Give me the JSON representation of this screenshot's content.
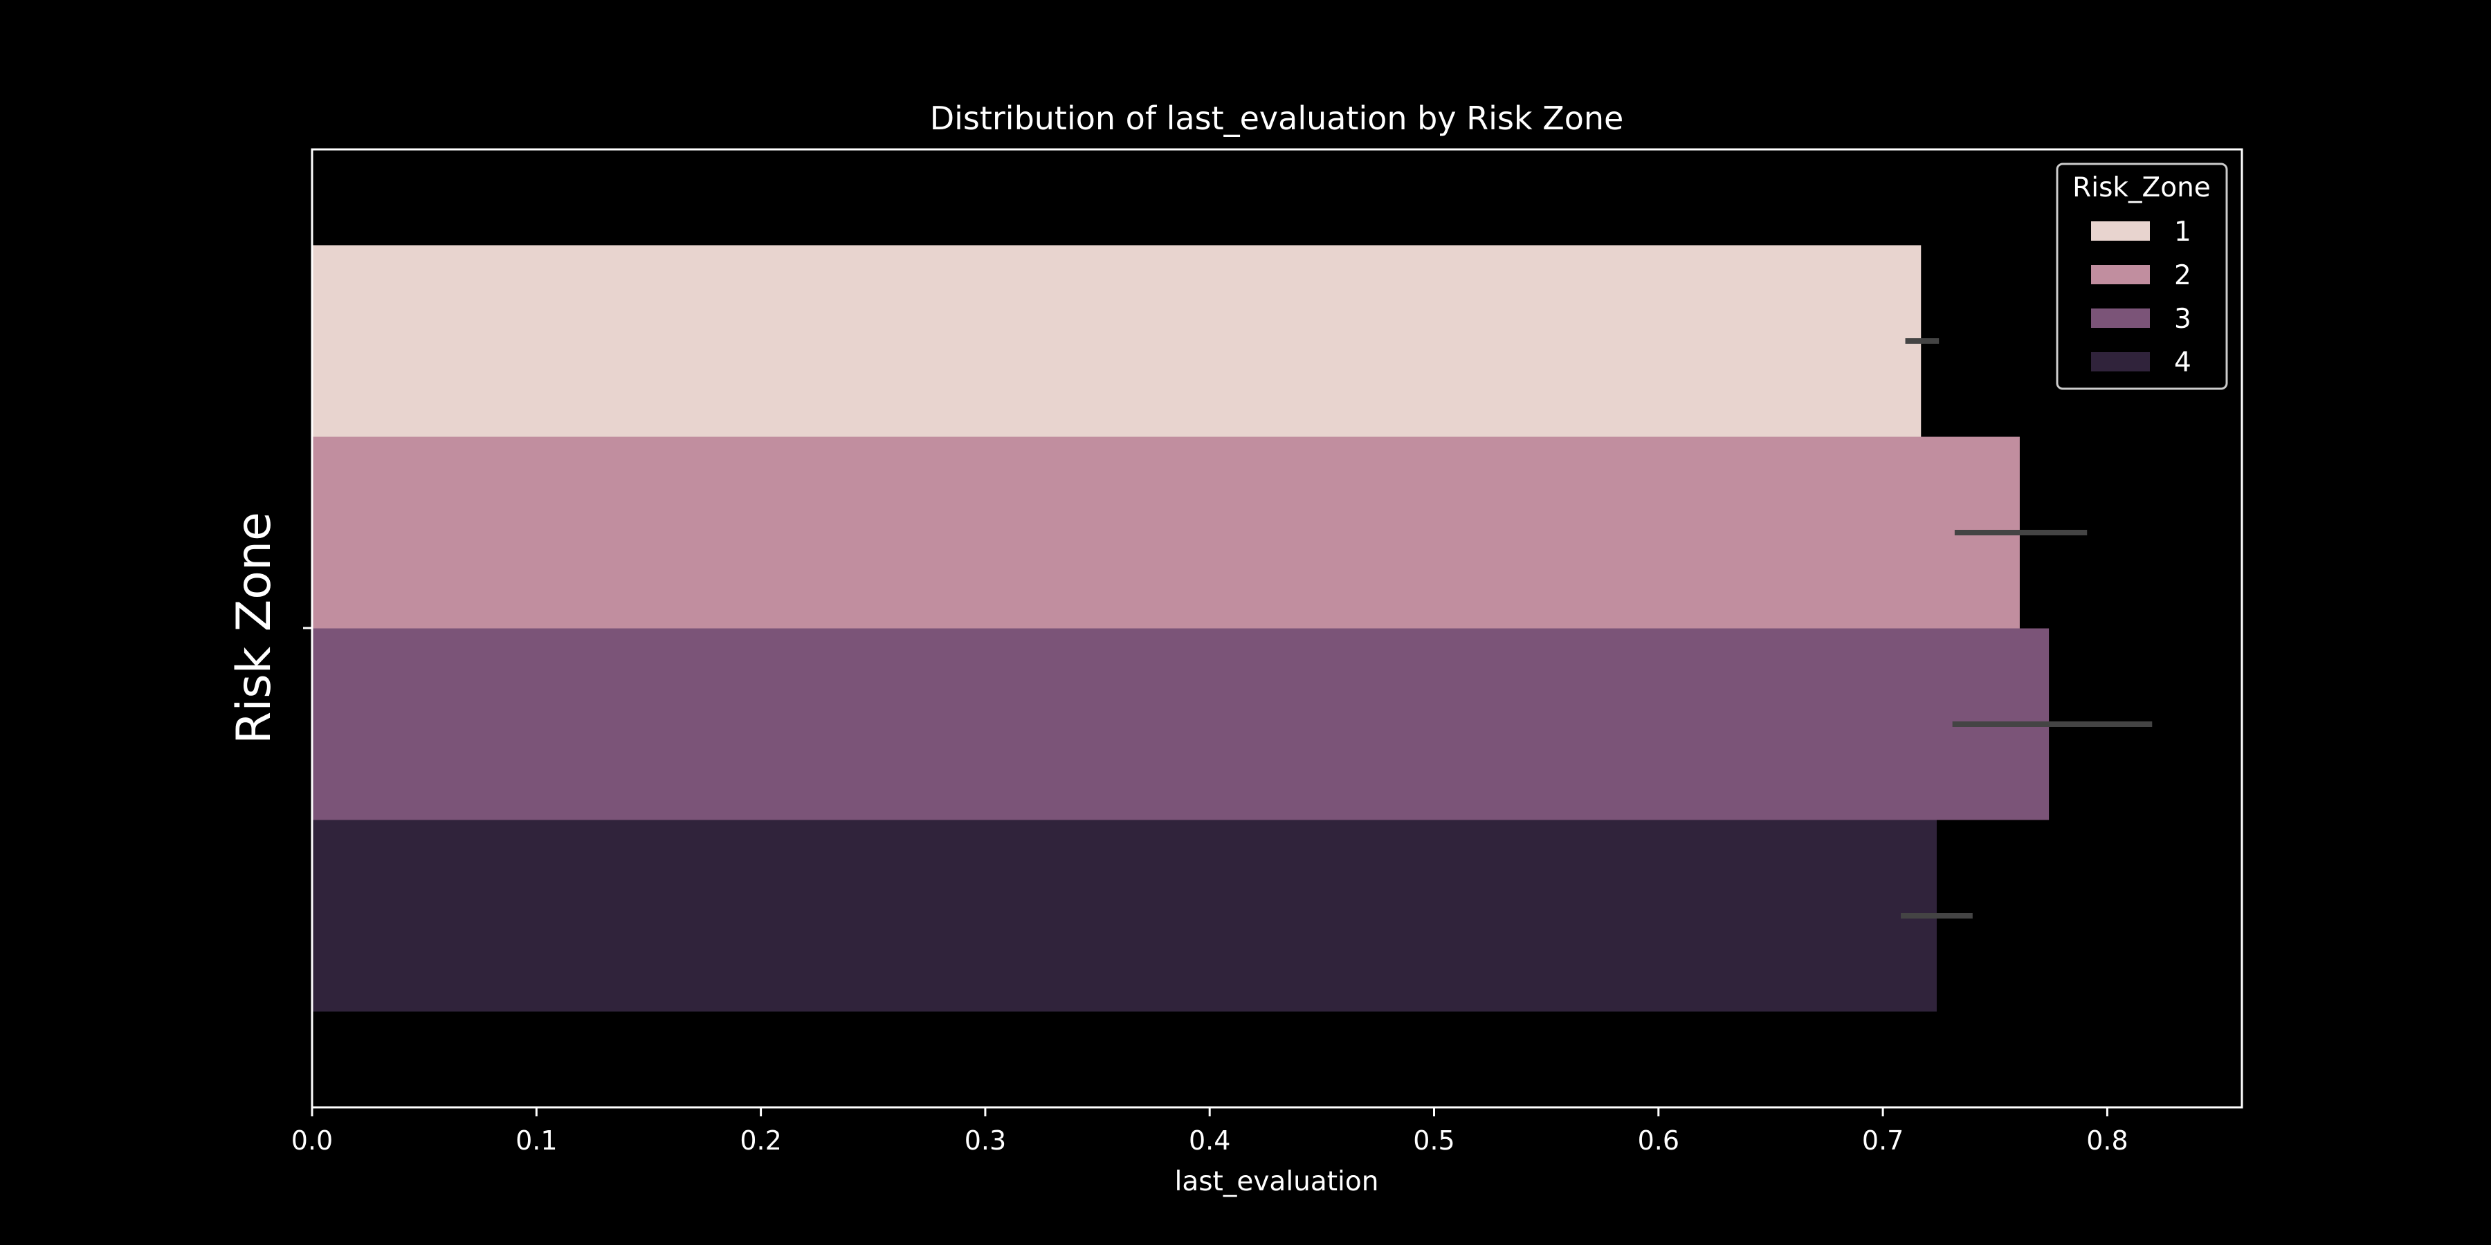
{
  "chart_data": {
    "type": "bar",
    "orientation": "horizontal",
    "title": "Distribution of last_evaluation by Risk Zone",
    "xlabel": "last_evaluation",
    "ylabel": "Risk Zone",
    "xlim": [
      0.0,
      0.86
    ],
    "xticks": [
      0.0,
      0.1,
      0.2,
      0.3,
      0.4,
      0.5,
      0.6,
      0.7,
      0.8
    ],
    "xtick_labels": [
      "0.0",
      "0.1",
      "0.2",
      "0.3",
      "0.4",
      "0.5",
      "0.6",
      "0.7",
      "0.8"
    ],
    "grid": false,
    "legend": {
      "title": "Risk_Zone",
      "placement": "top-right"
    },
    "series": [
      {
        "name": "1",
        "value": 0.717,
        "ci": [
          0.71,
          0.725
        ],
        "color": "#e8d4cf"
      },
      {
        "name": "2",
        "value": 0.761,
        "ci": [
          0.732,
          0.791
        ],
        "color": "#c18e9f"
      },
      {
        "name": "3",
        "value": 0.774,
        "ci": [
          0.731,
          0.82
        ],
        "color": "#7b5478"
      },
      {
        "name": "4",
        "value": 0.724,
        "ci": [
          0.708,
          0.74
        ],
        "color": "#30233b"
      }
    ],
    "colors": {
      "background": "#000000",
      "foreground": "#ffffff",
      "errorbar": "#444444"
    }
  }
}
